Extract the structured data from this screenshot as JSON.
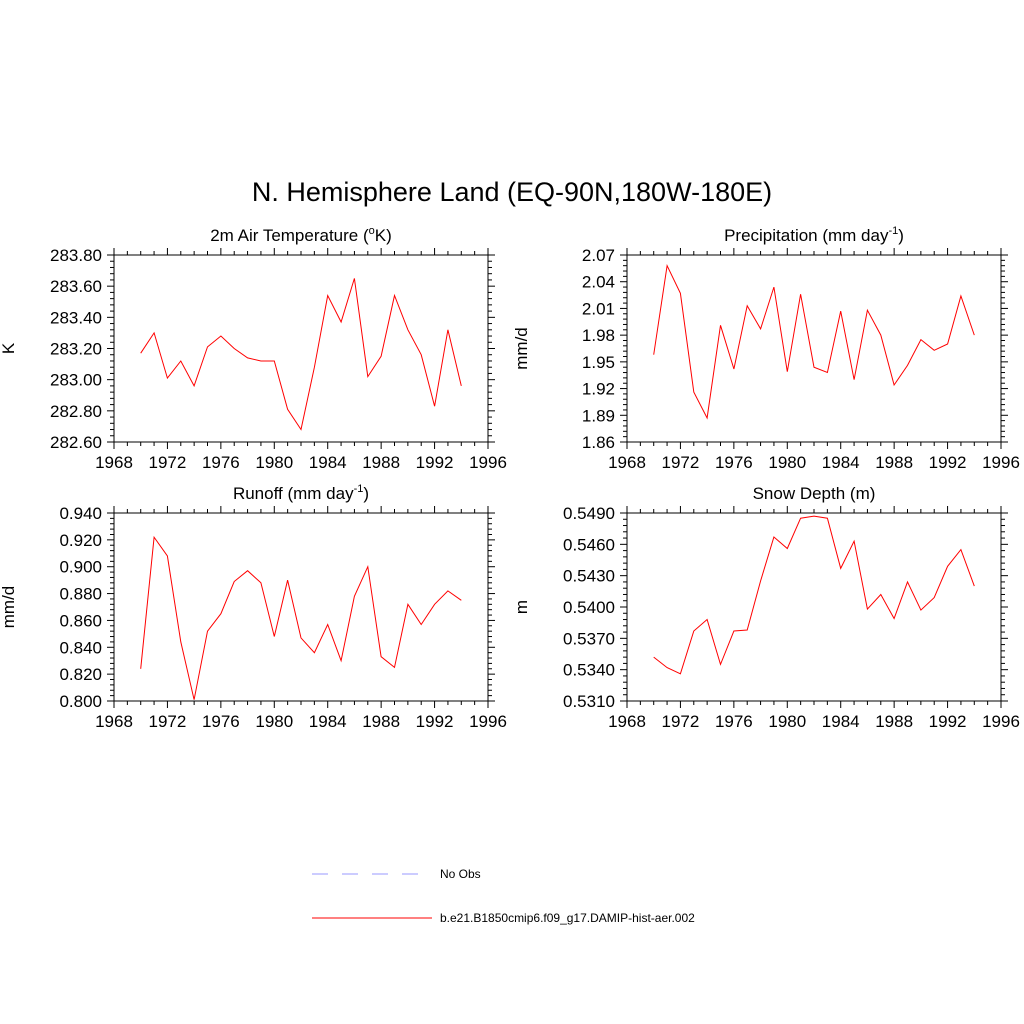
{
  "figure": {
    "title": "N. Hemisphere Land (EQ-90N,180W-180E)"
  },
  "legend": {
    "entries": [
      {
        "label": "No Obs",
        "color": "#9999ff",
        "style": "dashed"
      },
      {
        "label": "b.e21.B1850cmip6.f09_g17.DAMIP-hist-aer.002",
        "color": "#ff0000",
        "style": "solid"
      }
    ]
  },
  "chart_data": [
    {
      "type": "line",
      "title": "2m Air Temperature (",
      "title_sup": "o",
      "title_after": "K)",
      "ylabel": "K",
      "xlim": [
        1968,
        1996
      ],
      "ylim": [
        282.6,
        283.8
      ],
      "xticks": [
        1968,
        1972,
        1976,
        1980,
        1984,
        1988,
        1992,
        1996
      ],
      "yticks": [
        282.6,
        282.8,
        283.0,
        283.2,
        283.4,
        283.6,
        283.8
      ],
      "ytick_labels": [
        "282.60",
        "282.80",
        "283.00",
        "283.20",
        "283.40",
        "283.60",
        "283.80"
      ],
      "grid": false,
      "x": [
        1970,
        1971,
        1972,
        1973,
        1974,
        1975,
        1976,
        1977,
        1978,
        1979,
        1980,
        1981,
        1982,
        1983,
        1984,
        1985,
        1986,
        1987,
        1988,
        1989,
        1990,
        1991,
        1992,
        1993,
        1994
      ],
      "series": [
        {
          "color": "#ff0000",
          "values": [
            283.17,
            283.3,
            283.01,
            283.12,
            282.96,
            283.21,
            283.28,
            283.2,
            283.14,
            283.12,
            283.12,
            282.81,
            282.68,
            283.08,
            283.54,
            283.37,
            283.65,
            283.02,
            283.15,
            283.54,
            283.32,
            283.16,
            282.83,
            283.32,
            282.96
          ]
        }
      ]
    },
    {
      "type": "line",
      "title": "Precipitation (mm day",
      "title_sup": "-1",
      "title_after": ")",
      "ylabel": "mm/d",
      "xlim": [
        1968,
        1996
      ],
      "ylim": [
        1.86,
        2.07
      ],
      "xticks": [
        1968,
        1972,
        1976,
        1980,
        1984,
        1988,
        1992,
        1996
      ],
      "yticks": [
        1.86,
        1.89,
        1.92,
        1.95,
        1.98,
        2.01,
        2.04,
        2.07
      ],
      "ytick_labels": [
        "1.86",
        "1.89",
        "1.92",
        "1.95",
        "1.98",
        "2.01",
        "2.04",
        "2.07"
      ],
      "grid": false,
      "x": [
        1970,
        1971,
        1972,
        1973,
        1974,
        1975,
        1976,
        1977,
        1978,
        1979,
        1980,
        1981,
        1982,
        1983,
        1984,
        1985,
        1986,
        1987,
        1988,
        1989,
        1990,
        1991,
        1992,
        1993,
        1994
      ],
      "series": [
        {
          "color": "#ff0000",
          "values": [
            1.958,
            2.058,
            2.027,
            1.916,
            1.887,
            1.991,
            1.942,
            2.013,
            1.987,
            2.034,
            1.939,
            2.026,
            1.944,
            1.938,
            2.007,
            1.93,
            2.008,
            1.98,
            1.924,
            1.946,
            1.975,
            1.963,
            1.97,
            2.024,
            1.98
          ]
        }
      ]
    },
    {
      "type": "line",
      "title": "Runoff (mm day",
      "title_sup": "-1",
      "title_after": ")",
      "ylabel": "mm/d",
      "xlim": [
        1968,
        1996
      ],
      "ylim": [
        0.8,
        0.94
      ],
      "xticks": [
        1968,
        1972,
        1976,
        1980,
        1984,
        1988,
        1992,
        1996
      ],
      "yticks": [
        0.8,
        0.82,
        0.84,
        0.86,
        0.88,
        0.9,
        0.92,
        0.94
      ],
      "ytick_labels": [
        "0.800",
        "0.820",
        "0.840",
        "0.860",
        "0.880",
        "0.900",
        "0.920",
        "0.940"
      ],
      "grid": false,
      "x": [
        1970,
        1971,
        1972,
        1973,
        1974,
        1975,
        1976,
        1977,
        1978,
        1979,
        1980,
        1981,
        1982,
        1983,
        1984,
        1985,
        1986,
        1987,
        1988,
        1989,
        1990,
        1991,
        1992,
        1993,
        1994
      ],
      "series": [
        {
          "color": "#ff0000",
          "values": [
            0.824,
            0.922,
            0.908,
            0.844,
            0.801,
            0.852,
            0.865,
            0.889,
            0.897,
            0.888,
            0.848,
            0.89,
            0.847,
            0.836,
            0.857,
            0.83,
            0.878,
            0.9,
            0.833,
            0.825,
            0.872,
            0.857,
            0.872,
            0.882,
            0.875
          ]
        }
      ]
    },
    {
      "type": "line",
      "title": "Snow Depth (m)",
      "title_sup": "",
      "title_after": "",
      "ylabel": "m",
      "xlim": [
        1968,
        1996
      ],
      "ylim": [
        0.531,
        0.549
      ],
      "xticks": [
        1968,
        1972,
        1976,
        1980,
        1984,
        1988,
        1992,
        1996
      ],
      "yticks": [
        0.531,
        0.534,
        0.537,
        0.54,
        0.543,
        0.546,
        0.549
      ],
      "ytick_labels": [
        "0.5310",
        "0.5340",
        "0.5370",
        "0.5400",
        "0.5430",
        "0.5460",
        "0.5490"
      ],
      "grid": false,
      "x": [
        1970,
        1971,
        1972,
        1973,
        1974,
        1975,
        1976,
        1977,
        1978,
        1979,
        1980,
        1981,
        1982,
        1983,
        1984,
        1985,
        1986,
        1987,
        1988,
        1989,
        1990,
        1991,
        1992,
        1993,
        1994
      ],
      "series": [
        {
          "color": "#ff0000",
          "values": [
            0.5352,
            0.5342,
            0.5336,
            0.5377,
            0.5388,
            0.5345,
            0.5377,
            0.5378,
            0.5425,
            0.5467,
            0.5456,
            0.5485,
            0.5487,
            0.5485,
            0.5437,
            0.5463,
            0.5398,
            0.5412,
            0.5389,
            0.5424,
            0.5397,
            0.5409,
            0.5439,
            0.5455,
            0.542
          ]
        }
      ]
    }
  ]
}
